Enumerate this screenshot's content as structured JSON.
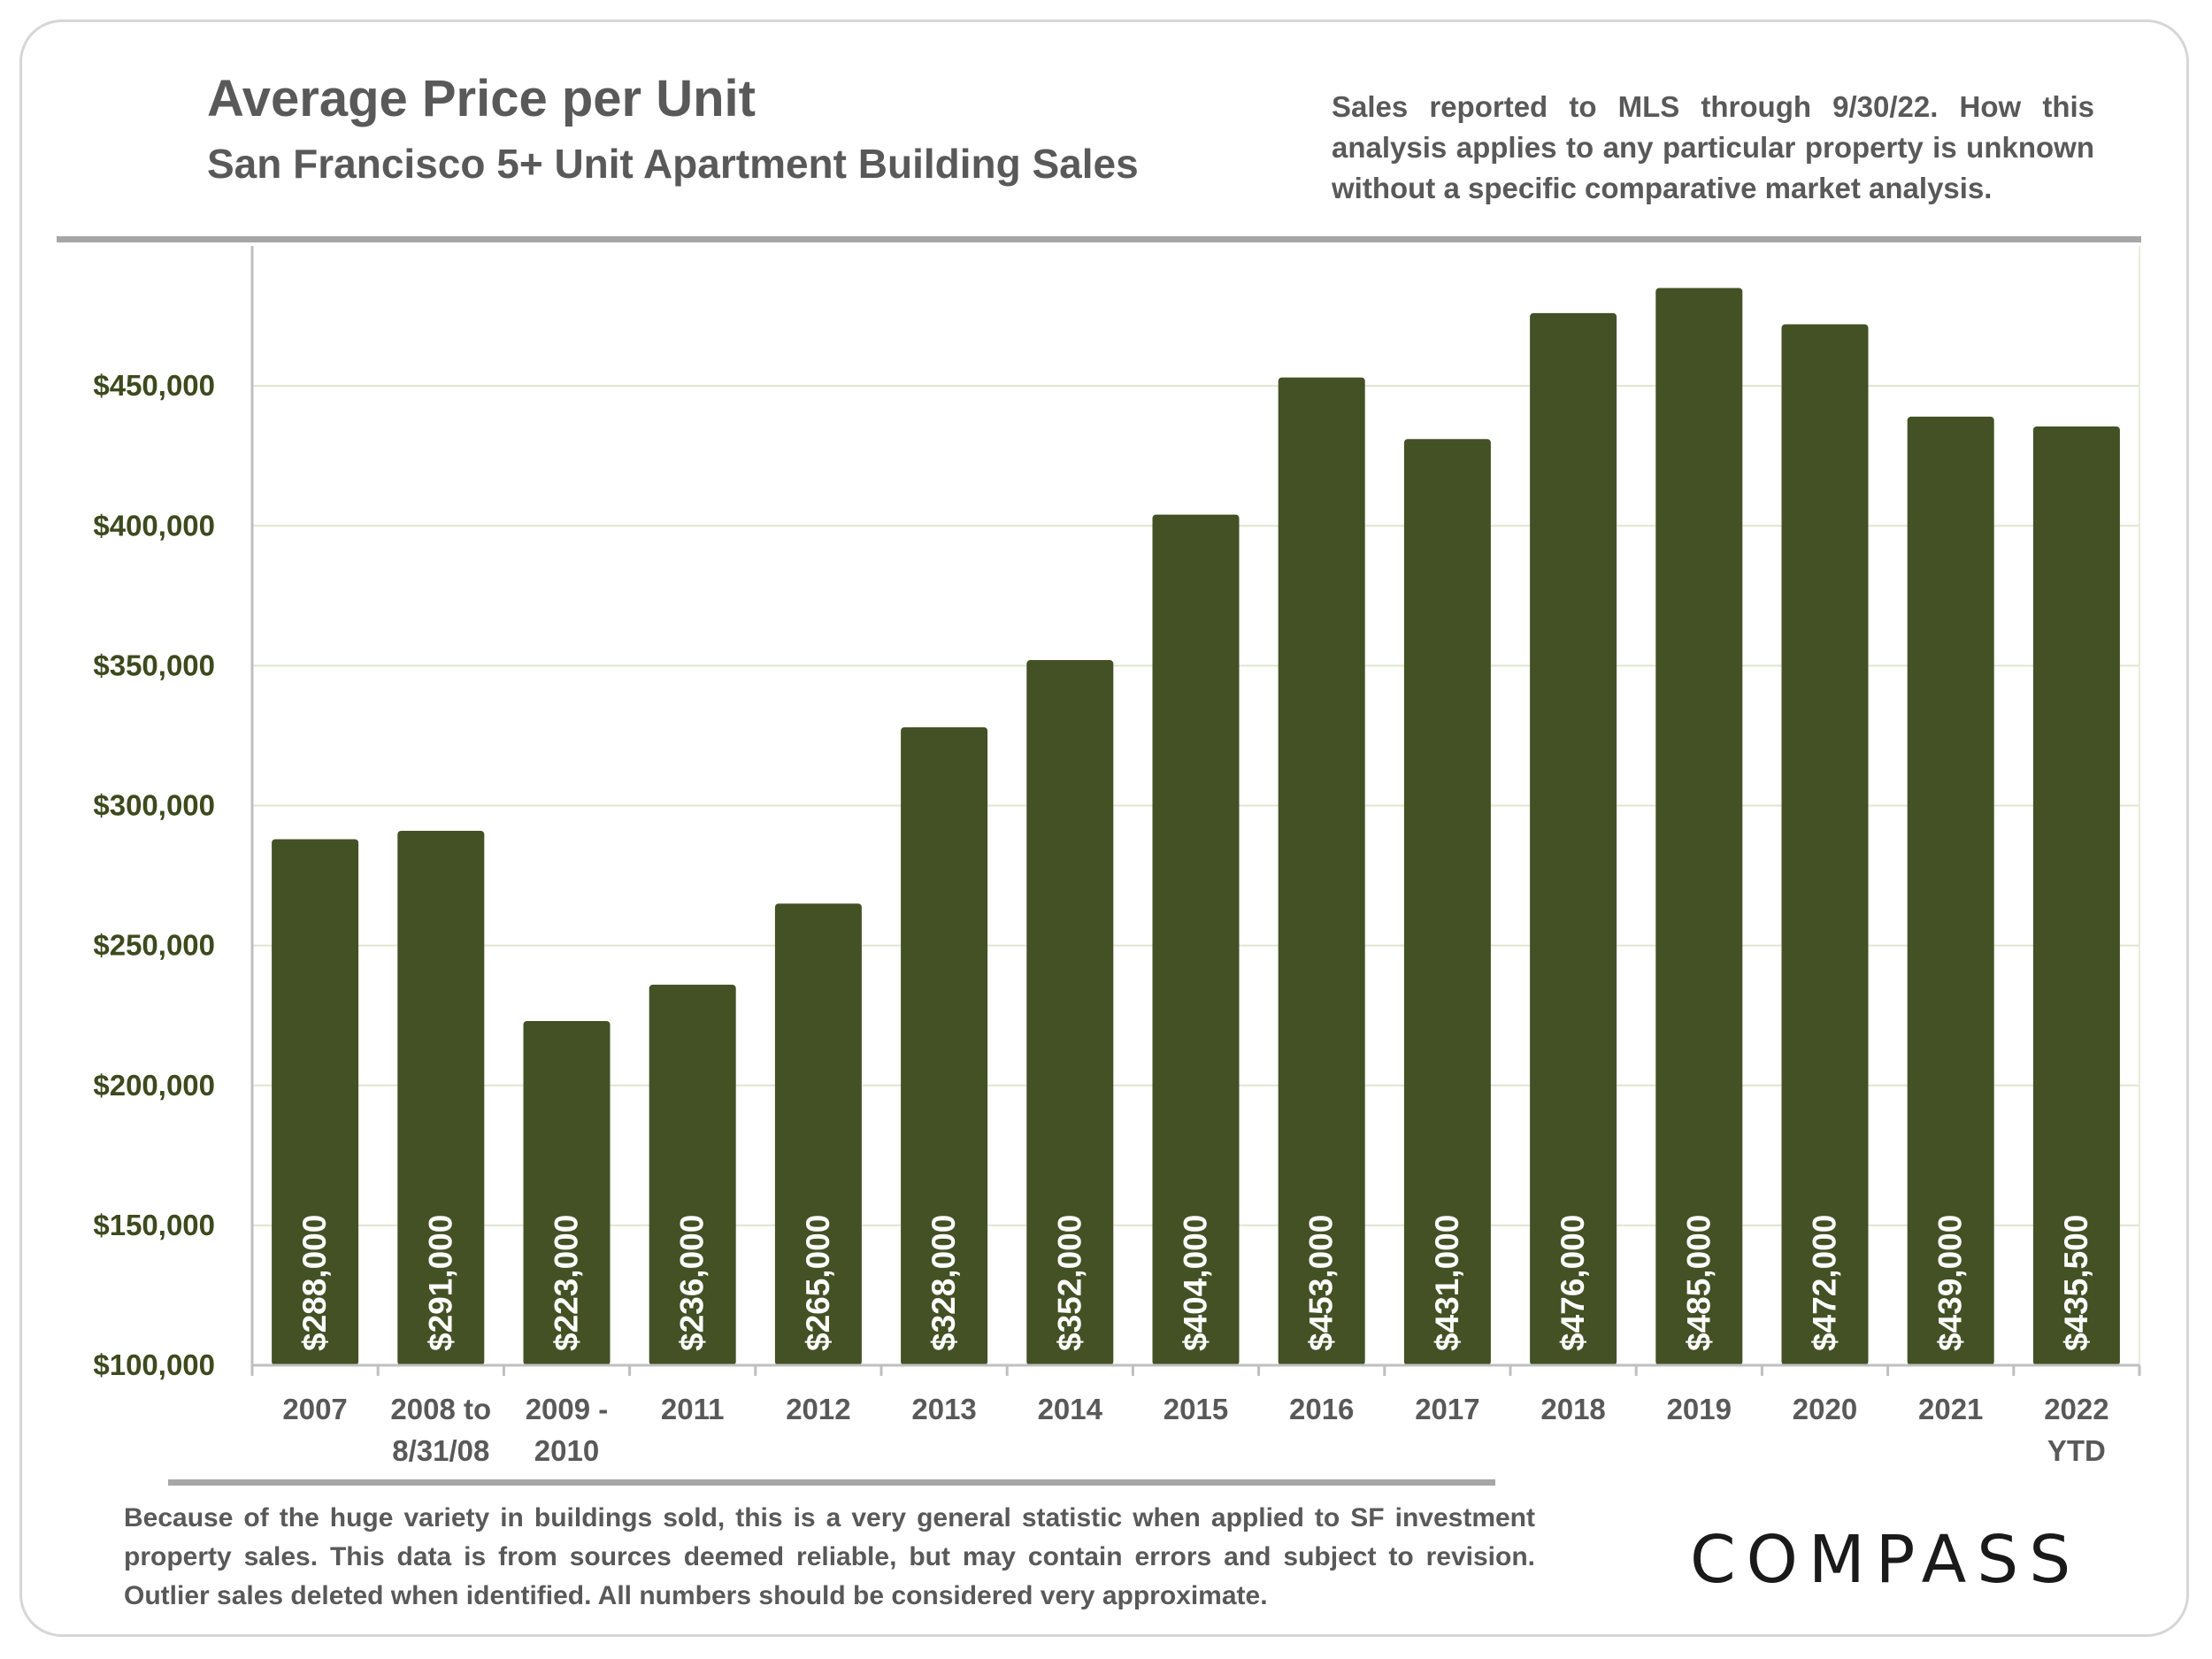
{
  "header": {
    "title": "Average Price per Unit",
    "subtitle": "San Francisco 5+ Unit Apartment Building Sales",
    "note": "Sales reported to MLS through 9/30/22. How this analysis applies to any particular property is unknown without a specific comparative market analysis."
  },
  "footer": {
    "disclaimer": "Because of the huge variety in buildings sold, this is a very general statistic when applied to SF investment property sales. This data is from sources deemed reliable, but may contain errors and subject to revision. Outlier sales deleted when identified. All numbers should be considered very approximate.",
    "logo_text": "COMPASS"
  },
  "colors": {
    "bar": "#435125",
    "axis_label": "#3d4a1e",
    "grid": "#dfe6cf",
    "text": "#595959"
  },
  "chart_data": {
    "type": "bar",
    "title": "Average Price per Unit",
    "subtitle": "San Francisco 5+ Unit Apartment Building Sales",
    "categories": [
      [
        "2007"
      ],
      [
        "2008 to",
        "8/31/08"
      ],
      [
        "2009 -",
        "2010"
      ],
      [
        "2011"
      ],
      [
        "2012"
      ],
      [
        "2013"
      ],
      [
        "2014"
      ],
      [
        "2015"
      ],
      [
        "2016"
      ],
      [
        "2017"
      ],
      [
        "2018"
      ],
      [
        "2019"
      ],
      [
        "2020"
      ],
      [
        "2021"
      ],
      [
        "2022",
        "YTD"
      ]
    ],
    "values": [
      288000,
      291000,
      223000,
      236000,
      265000,
      328000,
      352000,
      404000,
      453000,
      431000,
      476000,
      485000,
      472000,
      439000,
      435500
    ],
    "data_labels": [
      "$288,000",
      "$291,000",
      "$223,000",
      "$236,000",
      "$265,000",
      "$328,000",
      "$352,000",
      "$404,000",
      "$453,000",
      "$431,000",
      "$476,000",
      "$485,000",
      "$472,000",
      "$439,000",
      "$435,500"
    ],
    "ylim": [
      100000,
      500000
    ],
    "yticks": [
      100000,
      150000,
      200000,
      250000,
      300000,
      350000,
      400000,
      450000
    ],
    "ytick_labels": [
      "$100,000",
      "$150,000",
      "$200,000",
      "$250,000",
      "$300,000",
      "$350,000",
      "$400,000",
      "$450,000"
    ],
    "xlabel": "",
    "ylabel": "",
    "grid": true,
    "legend": "none"
  }
}
